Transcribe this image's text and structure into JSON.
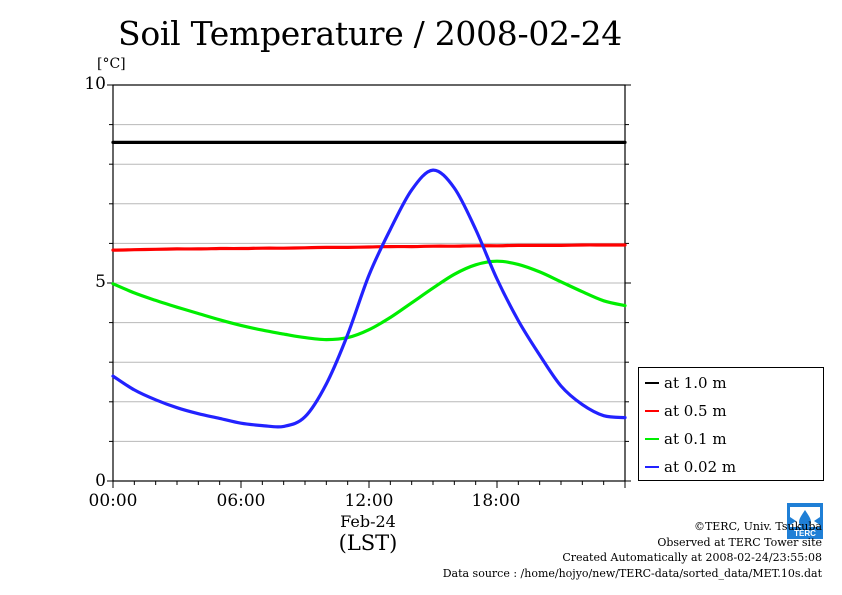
{
  "chart_data": {
    "type": "line",
    "title": "Soil Temperature / 2008-02-24",
    "ylabel": "[°C]",
    "xlabel": "(LST)",
    "date_label": "Feb-24",
    "ylim": [
      0,
      10
    ],
    "xlim_hours": [
      0,
      24
    ],
    "y_ticks": [
      "0",
      "5",
      "10"
    ],
    "x_ticks": [
      "00:00",
      "06:00",
      "12:00",
      "18:00"
    ],
    "grid": "horizontal",
    "legend_position": "right-bottom",
    "x_hours": [
      0,
      1,
      2,
      3,
      4,
      5,
      6,
      7,
      8,
      9,
      10,
      11,
      12,
      13,
      14,
      15,
      16,
      17,
      18,
      19,
      20,
      21,
      22,
      23,
      24
    ],
    "series": [
      {
        "name": "at 1.0 m",
        "color": "#000000",
        "values": [
          8.55,
          8.55,
          8.55,
          8.55,
          8.55,
          8.55,
          8.55,
          8.55,
          8.55,
          8.55,
          8.55,
          8.55,
          8.55,
          8.55,
          8.55,
          8.55,
          8.55,
          8.55,
          8.55,
          8.55,
          8.55,
          8.55,
          8.55,
          8.55,
          8.55
        ]
      },
      {
        "name": "at 0.5 m",
        "color": "#ff0000",
        "values": [
          5.83,
          5.84,
          5.85,
          5.86,
          5.86,
          5.87,
          5.87,
          5.88,
          5.88,
          5.89,
          5.9,
          5.9,
          5.91,
          5.92,
          5.92,
          5.93,
          5.93,
          5.94,
          5.94,
          5.95,
          5.95,
          5.95,
          5.96,
          5.96,
          5.96
        ]
      },
      {
        "name": "at 0.1 m",
        "color": "#00ee00",
        "values": [
          4.98,
          4.75,
          4.56,
          4.39,
          4.23,
          4.07,
          3.93,
          3.81,
          3.71,
          3.62,
          3.57,
          3.62,
          3.82,
          4.13,
          4.5,
          4.87,
          5.22,
          5.46,
          5.55,
          5.47,
          5.28,
          5.03,
          4.78,
          4.55,
          4.43
        ]
      },
      {
        "name": "at 0.02 m",
        "color": "#2222ff",
        "values": [
          2.65,
          2.3,
          2.05,
          1.85,
          1.7,
          1.58,
          1.46,
          1.4,
          1.38,
          1.62,
          2.45,
          3.7,
          5.2,
          6.35,
          7.35,
          7.85,
          7.4,
          6.35,
          5.1,
          4.05,
          3.18,
          2.4,
          1.93,
          1.65,
          1.6
        ]
      }
    ]
  },
  "credits": {
    "line1": "©TERC, Univ. Tsukuba",
    "line2": "Observed at TERC Tower site",
    "line3": "Created Automatically at 2008-02-24/23:55:08",
    "line4": "Data source : /home/hojyo/new/TERC-data/sorted_data/MET.10s.dat"
  },
  "logo": {
    "text": "TERC",
    "color": "#1f7fd6",
    "icon": "terc-logo"
  }
}
